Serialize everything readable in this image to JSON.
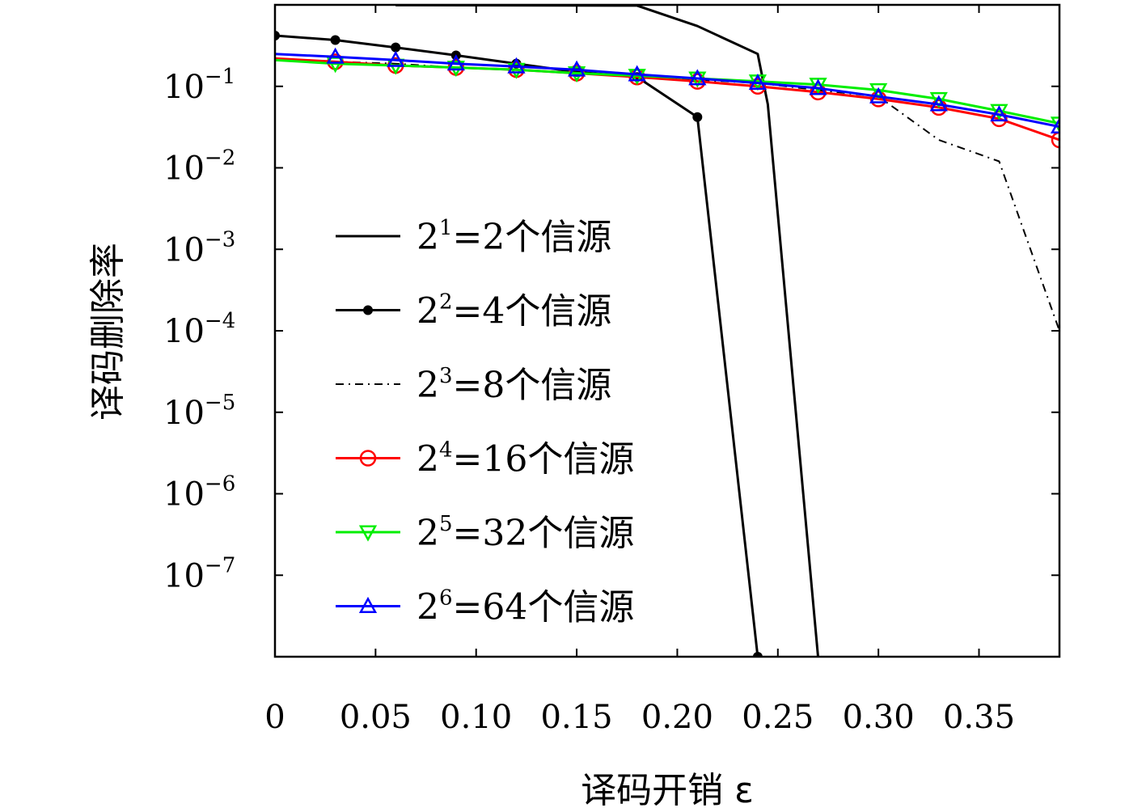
{
  "chart_data": {
    "type": "line",
    "title": "",
    "xlabel": "译码开销 ε",
    "ylabel": "译码删除率",
    "xlim": [
      0,
      0.39
    ],
    "ylim": [
      1e-08,
      1
    ],
    "yscale": "log",
    "grid": false,
    "legend_position": "center-left",
    "x_ticks": [
      {
        "value": 0,
        "label": "0"
      },
      {
        "value": 0.05,
        "label": "0.05"
      },
      {
        "value": 0.1,
        "label": "0.10"
      },
      {
        "value": 0.15,
        "label": "0.15"
      },
      {
        "value": 0.2,
        "label": "0.20"
      },
      {
        "value": 0.25,
        "label": "0.25"
      },
      {
        "value": 0.3,
        "label": "0.30"
      },
      {
        "value": 0.35,
        "label": "0.35"
      }
    ],
    "y_ticks": [
      {
        "value": 0.1,
        "base": "10",
        "exp": "−1"
      },
      {
        "value": 0.01,
        "base": "10",
        "exp": "−2"
      },
      {
        "value": 0.001,
        "base": "10",
        "exp": "−3"
      },
      {
        "value": 0.0001,
        "base": "10",
        "exp": "−4"
      },
      {
        "value": 1e-05,
        "base": "10",
        "exp": "−5"
      },
      {
        "value": 1e-06,
        "base": "10",
        "exp": "−6"
      },
      {
        "value": 1e-07,
        "base": "10",
        "exp": "−7"
      }
    ],
    "series": [
      {
        "name": "2¹=2个信源",
        "label_parts": [
          "2",
          "1",
          "=2个信源"
        ],
        "color": "#000000",
        "dash": "solid",
        "marker": "none",
        "points": [
          [
            0.06,
            0.99
          ],
          [
            0.18,
            0.98
          ],
          [
            0.21,
            0.55
          ],
          [
            0.24,
            0.25
          ],
          [
            0.245,
            0.06
          ],
          [
            0.27,
            1e-08
          ]
        ]
      },
      {
        "name": "2²=4个信源",
        "label_parts": [
          "2",
          "2",
          "=4个信源"
        ],
        "color": "#000000",
        "dash": "solid",
        "marker": "dot",
        "points": [
          [
            0,
            0.42
          ],
          [
            0.03,
            0.37
          ],
          [
            0.06,
            0.3
          ],
          [
            0.09,
            0.24
          ],
          [
            0.12,
            0.19
          ],
          [
            0.15,
            0.15
          ],
          [
            0.18,
            0.13
          ],
          [
            0.21,
            0.042
          ],
          [
            0.24,
            1e-08
          ]
        ]
      },
      {
        "name": "2³=8个信源",
        "label_parts": [
          "2",
          "3",
          "=8个信源"
        ],
        "color": "#000000",
        "dash": "dashdot",
        "marker": "none",
        "points": [
          [
            0,
            0.22
          ],
          [
            0.03,
            0.2
          ],
          [
            0.06,
            0.19
          ],
          [
            0.09,
            0.17
          ],
          [
            0.12,
            0.16
          ],
          [
            0.15,
            0.145
          ],
          [
            0.18,
            0.13
          ],
          [
            0.21,
            0.12
          ],
          [
            0.24,
            0.11
          ],
          [
            0.27,
            0.09
          ],
          [
            0.3,
            0.075
          ],
          [
            0.33,
            0.022
          ],
          [
            0.36,
            0.012
          ],
          [
            0.39,
            0.0001
          ]
        ]
      },
      {
        "name": "2⁴=16个信源",
        "label_parts": [
          "2",
          "4",
          "=16个信源"
        ],
        "color": "#ff0000",
        "dash": "solid",
        "marker": "circle",
        "points": [
          [
            0,
            0.22
          ],
          [
            0.03,
            0.2
          ],
          [
            0.06,
            0.18
          ],
          [
            0.09,
            0.17
          ],
          [
            0.12,
            0.16
          ],
          [
            0.15,
            0.145
          ],
          [
            0.18,
            0.13
          ],
          [
            0.21,
            0.115
          ],
          [
            0.24,
            0.1
          ],
          [
            0.27,
            0.085
          ],
          [
            0.3,
            0.07
          ],
          [
            0.33,
            0.055
          ],
          [
            0.36,
            0.04
          ],
          [
            0.39,
            0.022
          ]
        ]
      },
      {
        "name": "2⁵=32个信源",
        "label_parts": [
          "2",
          "5",
          "=32个信源"
        ],
        "color": "#00ee00",
        "dash": "solid",
        "marker": "triangle-down",
        "points": [
          [
            0,
            0.21
          ],
          [
            0.03,
            0.19
          ],
          [
            0.06,
            0.18
          ],
          [
            0.09,
            0.17
          ],
          [
            0.12,
            0.16
          ],
          [
            0.15,
            0.145
          ],
          [
            0.18,
            0.135
          ],
          [
            0.21,
            0.125
          ],
          [
            0.24,
            0.115
          ],
          [
            0.27,
            0.105
          ],
          [
            0.3,
            0.09
          ],
          [
            0.33,
            0.07
          ],
          [
            0.36,
            0.05
          ],
          [
            0.39,
            0.035
          ]
        ]
      },
      {
        "name": "2⁶=64个信源",
        "label_parts": [
          "2",
          "6",
          "=64个信源"
        ],
        "color": "#0000ff",
        "dash": "solid",
        "marker": "triangle-up",
        "points": [
          [
            0,
            0.25
          ],
          [
            0.03,
            0.23
          ],
          [
            0.06,
            0.21
          ],
          [
            0.09,
            0.19
          ],
          [
            0.12,
            0.175
          ],
          [
            0.15,
            0.16
          ],
          [
            0.18,
            0.14
          ],
          [
            0.21,
            0.125
          ],
          [
            0.24,
            0.11
          ],
          [
            0.27,
            0.095
          ],
          [
            0.3,
            0.075
          ],
          [
            0.33,
            0.06
          ],
          [
            0.36,
            0.045
          ],
          [
            0.39,
            0.032
          ]
        ]
      }
    ]
  }
}
